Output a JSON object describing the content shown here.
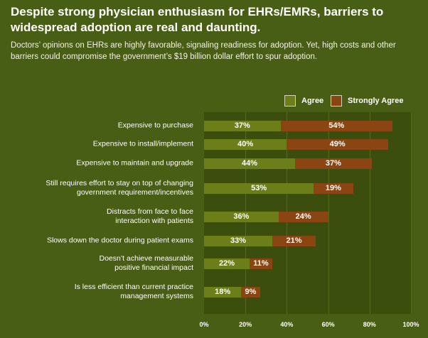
{
  "header": {
    "title": "Despite strong physician enthusiasm for EHRs/EMRs, barriers to widespread adoption are real and daunting.",
    "subtitle": "Doctors’ opinions on EHRs are highly favorable, signaling readiness for adoption. Yet, high costs and other barriers could compromise the government’s $19 billion dollar effort to spur adoption."
  },
  "colors": {
    "background": "#495e15",
    "plot_background": "#3b4e0e",
    "agree": "#6b7e1a",
    "strongly_agree": "#8b4513"
  },
  "chart_data": {
    "type": "bar",
    "orientation": "horizontal",
    "stacked": true,
    "categories": [
      "Expensive to purchase",
      "Expensive to install/implement",
      "Expensive to maintain and upgrade",
      "Still requires effort to stay on top of changing government requirement/incentives",
      "Distracts from face to face interaction with patients",
      "Slows down the doctor during patient exams",
      "Doesn’t achieve measurable positive financial impact",
      "Is less efficient than current practice management systems"
    ],
    "category_lines": [
      [
        "Expensive to purchase"
      ],
      [
        "Expensive to install/implement"
      ],
      [
        "Expensive to maintain and upgrade"
      ],
      [
        "Still requires effort to stay on top of changing",
        "government requirement/incentives"
      ],
      [
        "Distracts from face to face",
        "interaction with patients"
      ],
      [
        "Slows down the doctor during patient exams"
      ],
      [
        "Doesn’t achieve measurable",
        "positive financial impact"
      ],
      [
        "Is less efficient than current practice",
        "management systems"
      ]
    ],
    "series": [
      {
        "name": "Agree",
        "values": [
          37,
          40,
          44,
          53,
          36,
          33,
          22,
          18
        ],
        "labels": [
          "37%",
          "40%",
          "44%",
          "53%",
          "36%",
          "33%",
          "22%",
          "18%"
        ]
      },
      {
        "name": "Strongly Agree",
        "values": [
          54,
          49,
          37,
          19,
          24,
          21,
          11,
          9
        ],
        "labels": [
          "54%",
          "49%",
          "37%",
          "19%",
          "24%",
          "21%",
          "11%",
          "9%"
        ]
      }
    ],
    "xlim": [
      0,
      100
    ],
    "ticks": [
      0,
      20,
      40,
      60,
      80,
      100
    ],
    "tick_labels": [
      "0%",
      "20%",
      "40%",
      "60%",
      "80%",
      "100%"
    ],
    "grid": true,
    "legend_position": "top-right"
  }
}
